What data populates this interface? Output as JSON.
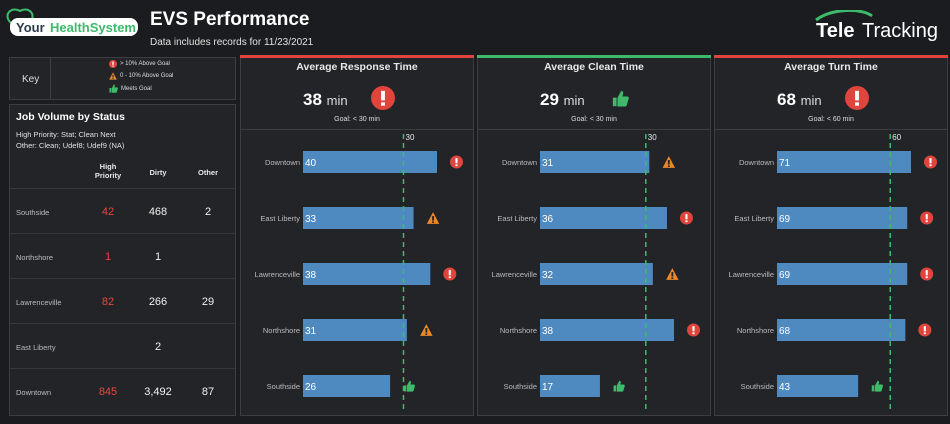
{
  "header": {
    "logo_left": "YourHealthSystem",
    "title": "EVS Performance",
    "subtitle": "Data includes records for 11/23/2021",
    "logo_right": "TeleTracking"
  },
  "key": {
    "label": "Key",
    "items": [
      {
        "icon": "red-alert-icon",
        "text": "> 10% Above Goal"
      },
      {
        "icon": "warning-triangle-icon",
        "text": "0 - 10% Above Goal"
      },
      {
        "icon": "thumbs-up-icon",
        "text": "Meets Goal"
      }
    ]
  },
  "job_volume": {
    "title": "Job Volume by Status",
    "note1": "High Priority: Stat; Clean Next",
    "note2": "Other: Clean; Udef8; Udef9 (NA)",
    "headers": {
      "high_priority_1": "High",
      "high_priority_2": "Priority",
      "dirty": "Dirty",
      "other": "Other"
    },
    "rows": [
      {
        "location": "Southside",
        "high_priority": "42",
        "dirty": "468",
        "other": "2"
      },
      {
        "location": "Northshore",
        "high_priority": "1",
        "dirty": "1",
        "other": ""
      },
      {
        "location": "Lawrenceville",
        "high_priority": "82",
        "dirty": "266",
        "other": "29"
      },
      {
        "location": "East Liberty",
        "high_priority": "",
        "dirty": "2",
        "other": ""
      },
      {
        "location": "Downtown",
        "high_priority": "845",
        "dirty": "3,492",
        "other": "87"
      }
    ]
  },
  "colors": {
    "bar": "#4e89c0",
    "goal_line": "#3dbb6b",
    "red": "#e0453d",
    "orange": "#e8882b",
    "green": "#3dbb6b"
  },
  "chart_data": [
    {
      "type": "bar",
      "title": "Average Response Time",
      "summary_value": "38",
      "summary_unit": "min",
      "summary_status": "red-alert-icon",
      "goal_text": "Goal: < 30 min",
      "goal": 30,
      "goal_label": "30",
      "top_color": "red",
      "categories": [
        "Downtown",
        "East Liberty",
        "Lawrenceville",
        "Northshore",
        "Southside"
      ],
      "values": [
        40,
        33,
        38,
        31,
        26
      ],
      "status": [
        "red-alert-icon",
        "warning-triangle-icon",
        "red-alert-icon",
        "warning-triangle-icon",
        "thumbs-up-icon"
      ],
      "xlim": [
        0,
        40
      ]
    },
    {
      "type": "bar",
      "title": "Average Clean Time",
      "summary_value": "29",
      "summary_unit": "min",
      "summary_status": "thumbs-up-icon",
      "goal_text": "Goal: < 30 min",
      "goal": 30,
      "goal_label": "30",
      "top_color": "green",
      "categories": [
        "Downtown",
        "East Liberty",
        "Lawrenceville",
        "Northshore",
        "Southside"
      ],
      "values": [
        31,
        36,
        32,
        38,
        17
      ],
      "status": [
        "warning-triangle-icon",
        "red-alert-icon",
        "warning-triangle-icon",
        "red-alert-icon",
        "thumbs-up-icon"
      ],
      "xlim": [
        0,
        38
      ]
    },
    {
      "type": "bar",
      "title": "Average Turn Time",
      "summary_value": "68",
      "summary_unit": "min",
      "summary_status": "red-alert-icon",
      "goal_text": "Goal: < 60 min",
      "goal": 60,
      "goal_label": "60",
      "top_color": "red",
      "categories": [
        "Downtown",
        "East Liberty",
        "Lawrenceville",
        "Northshore",
        "Southside"
      ],
      "values": [
        71,
        69,
        69,
        68,
        43
      ],
      "status": [
        "red-alert-icon",
        "red-alert-icon",
        "red-alert-icon",
        "red-alert-icon",
        "thumbs-up-icon"
      ],
      "xlim": [
        0,
        71
      ]
    }
  ]
}
